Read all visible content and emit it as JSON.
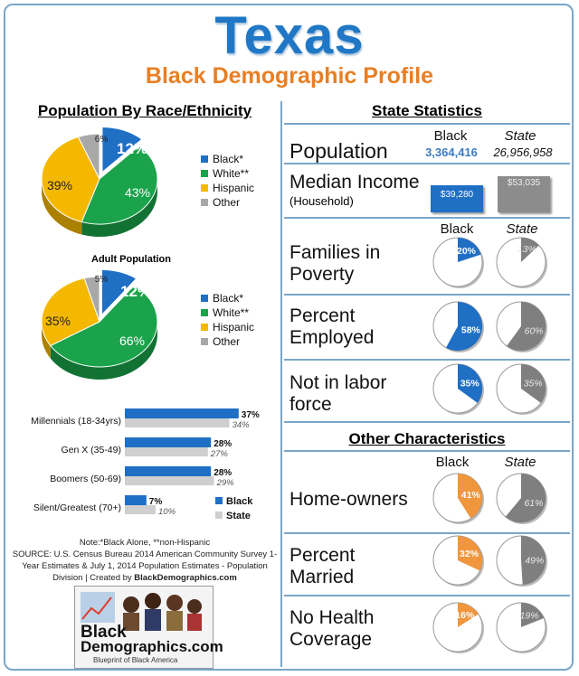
{
  "header": {
    "title": "Texas",
    "subtitle": "Black Demographic Profile"
  },
  "left": {
    "race_heading": "Population By Race/Ethnicity",
    "adult_heading": "Adult Population",
    "legend": [
      "Black*",
      "White**",
      "Hispanic",
      "Other"
    ],
    "generations_legend": [
      "Black",
      "State"
    ]
  },
  "right": {
    "stats_heading": "State Statistics",
    "other_heading": "Other Characteristics",
    "col_black": "Black",
    "col_state": "State",
    "population": {
      "label": "Population",
      "black": "3,364,416",
      "state": "26,956,958"
    },
    "income": {
      "label": "Median Income",
      "sublabel": "(Household)",
      "black": "$39,280",
      "state": "$53,035",
      "black_value": 39280,
      "state_value": 53035
    },
    "rows": [
      {
        "label_1": "Families in",
        "label_2": "Poverty",
        "black": 20,
        "state": 13,
        "black_text": "20%",
        "state_text": "13%"
      },
      {
        "label_1": "Percent",
        "label_2": "Employed",
        "black": 58,
        "state": 60,
        "black_text": "58%",
        "state_text": "60%"
      },
      {
        "label_1": "Not in labor",
        "label_2": "force",
        "black": 35,
        "state": 35,
        "black_text": "35%",
        "state_text": "35%"
      }
    ],
    "other_rows": [
      {
        "label_1": "Home-owners",
        "label_2": "",
        "black": 41,
        "state": 61,
        "black_text": "41%",
        "state_text": "61%"
      },
      {
        "label_1": "Percent",
        "label_2": "Married",
        "black": 32,
        "state": 49,
        "black_text": "32%",
        "state_text": "49%"
      },
      {
        "label_1": "No Health",
        "label_2": "Coverage",
        "black": 16,
        "state": 19,
        "black_text": "16%",
        "state_text": "19%"
      }
    ]
  },
  "footer": {
    "note_1": "Note:*Black Alone, **non-Hispanic",
    "note_2": "SOURCE: U.S. Census Bureau 2014 American Community Survey 1-",
    "note_3": "Year Estimates & July 1, 2014  Population Estimates - Population",
    "note_4": "Division | Created by ",
    "note_brand": "BlackDemographics.com",
    "logo_1": "Black",
    "logo_2": "Demographics.com",
    "logo_tag": "Blueprint of Black America"
  },
  "colors": {
    "black": "#1f6fc5",
    "white": "#1aa34a",
    "hispanic": "#f5b800",
    "other": "#a8a8a8",
    "state": "#7f7f7f",
    "other_char": "#f0963c"
  },
  "chart_data": [
    {
      "type": "pie",
      "title": "Population By Race/Ethnicity",
      "labels": [
        "Black*",
        "White**",
        "Hispanic",
        "Other"
      ],
      "values": [
        12,
        43,
        39,
        6
      ],
      "value_labels": [
        "12%",
        "43%",
        "39%",
        "6%"
      ]
    },
    {
      "type": "pie",
      "title": "Adult Population",
      "labels": [
        "Black*",
        "White**",
        "Hispanic",
        "Other"
      ],
      "values": [
        12,
        66,
        35,
        5
      ],
      "value_labels": [
        "12%",
        "66%",
        "35%",
        "5%"
      ]
    },
    {
      "type": "bar",
      "categories": [
        "Millennials (18-34yrs)",
        "Gen X (35-49)",
        "Boomers (50-69)",
        "Silent/Greatest (70+)"
      ],
      "series": [
        {
          "name": "Black",
          "values": [
            37,
            28,
            28,
            7
          ],
          "labels": [
            "37%",
            "28%",
            "28%",
            "7%"
          ]
        },
        {
          "name": "State",
          "values": [
            34,
            27,
            29,
            10
          ],
          "labels": [
            "34%",
            "27%",
            "29%",
            "10%"
          ]
        }
      ]
    }
  ]
}
